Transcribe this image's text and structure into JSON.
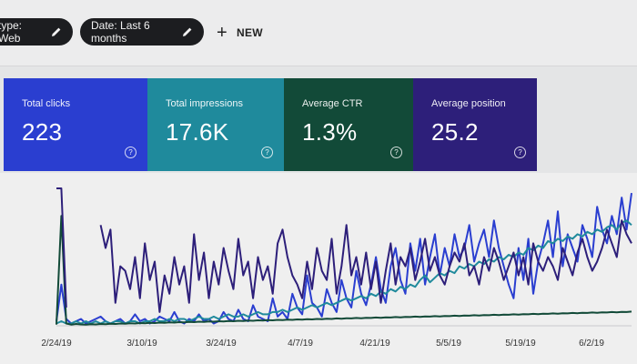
{
  "filters": {
    "type_chip": "type: Web",
    "date_chip": "Date: Last 6 months",
    "new_label": "NEW"
  },
  "metrics": [
    {
      "label": "Total clicks",
      "value": "223",
      "color": "#2a3ed0"
    },
    {
      "label": "Total impressions",
      "value": "17.6K",
      "color": "#1f8a9c"
    },
    {
      "label": "Average CTR",
      "value": "1.3%",
      "color": "#124a38"
    },
    {
      "label": "Average position",
      "value": "25.2",
      "color": "#2d1f7a"
    }
  ],
  "chart_data": {
    "type": "line",
    "x_ticks": [
      "2/24/19",
      "3/10/19",
      "3/24/19",
      "4/7/19",
      "4/21/19",
      "5/5/19",
      "5/19/19",
      "6/2/19"
    ],
    "x_count": 118,
    "series": [
      {
        "color": "#2a3ed0",
        "values": [
          2,
          18,
          3,
          1,
          2,
          3,
          1,
          2,
          3,
          4,
          2,
          1,
          2,
          3,
          1,
          2,
          5,
          2,
          3,
          1,
          2,
          4,
          3,
          2,
          6,
          2,
          1,
          3,
          2,
          5,
          2,
          3,
          1,
          2,
          6,
          3,
          2,
          7,
          3,
          2,
          9,
          4,
          3,
          2,
          12,
          4,
          6,
          3,
          14,
          8,
          5,
          22,
          10,
          8,
          4,
          16,
          10,
          6,
          20,
          12,
          8,
          24,
          14,
          9,
          18,
          30,
          16,
          10,
          26,
          34,
          20,
          14,
          36,
          24,
          38,
          18,
          30,
          40,
          22,
          34,
          26,
          40,
          30,
          34,
          44,
          28,
          36,
          42,
          30,
          46,
          34,
          26,
          18,
          12,
          34,
          20,
          38,
          14,
          28,
          36,
          46,
          30,
          50,
          26,
          40,
          34,
          28,
          44,
          38,
          30,
          52,
          42,
          36,
          48,
          40,
          56,
          42,
          58
        ]
      },
      {
        "color": "#1f8a9c",
        "values": [
          1,
          2,
          1,
          1,
          2,
          1,
          2,
          1,
          2,
          1,
          2,
          1,
          2,
          2,
          1,
          2,
          2,
          1,
          2,
          2,
          3,
          2,
          2,
          3,
          2,
          3,
          3,
          2,
          3,
          4,
          3,
          3,
          4,
          3,
          4,
          5,
          4,
          4,
          5,
          4,
          5,
          6,
          5,
          5,
          6,
          6,
          7,
          6,
          7,
          8,
          7,
          8,
          9,
          8,
          9,
          10,
          9,
          10,
          11,
          12,
          11,
          12,
          13,
          12,
          14,
          13,
          15,
          14,
          16,
          15,
          17,
          16,
          18,
          17,
          20,
          22,
          19,
          21,
          23,
          22,
          24,
          23,
          26,
          25,
          27,
          26,
          28,
          27,
          29,
          28,
          30,
          29,
          31,
          30,
          32,
          31,
          34,
          33,
          35,
          34,
          37,
          36,
          38,
          37,
          39,
          38,
          40,
          39,
          41,
          40,
          42,
          41,
          43,
          44,
          42,
          45,
          46,
          44
        ]
      },
      {
        "color": "#124a38",
        "values": [
          0.5,
          48,
          1,
          0.5,
          0.8,
          0.6,
          0.5,
          0.7,
          0.6,
          0.8,
          0.7,
          0.9,
          0.8,
          1,
          0.9,
          1.1,
          1,
          1.2,
          1.1,
          1.3,
          1.2,
          1.4,
          1.3,
          1.5,
          1.4,
          1.6,
          1.5,
          1.7,
          1.6,
          1.8,
          1.7,
          1.9,
          1.8,
          2,
          1.9,
          2.1,
          2,
          2.2,
          2.1,
          2.3,
          2.2,
          2.4,
          2.3,
          2.5,
          2.4,
          2.6,
          2.5,
          2.7,
          2.6,
          2.8,
          2.7,
          2.9,
          2.8,
          3,
          2.9,
          3.1,
          3,
          3.2,
          3.1,
          3.3,
          3.2,
          3.4,
          3.3,
          3.5,
          3.4,
          3.6,
          3.5,
          3.7,
          3.6,
          3.8,
          3.7,
          3.9,
          3.8,
          4,
          3.9,
          4.1,
          4,
          4.2,
          4.1,
          4.3,
          4.2,
          4.4,
          4.3,
          4.5,
          4.4,
          4.6,
          4.5,
          4.7,
          4.6,
          4.8,
          4.7,
          4.9,
          4.8,
          5,
          4.9,
          5.1,
          5,
          5.2,
          5.1,
          5.3,
          5.2,
          5.4,
          5.3,
          5.5,
          5.4,
          5.6,
          5.5,
          5.7,
          5.6,
          5.8,
          5.7,
          5.9,
          5.8,
          6,
          5.9,
          6.1,
          6,
          6.2
        ]
      },
      {
        "color": "#2d1f7a",
        "values": [
          60,
          60,
          8,
          null,
          null,
          null,
          null,
          null,
          null,
          44,
          34,
          42,
          10,
          26,
          24,
          16,
          30,
          12,
          36,
          20,
          28,
          6,
          22,
          14,
          30,
          18,
          26,
          10,
          40,
          20,
          32,
          12,
          28,
          18,
          34,
          24,
          16,
          38,
          22,
          28,
          12,
          30,
          20,
          26,
          14,
          36,
          42,
          30,
          22,
          18,
          12,
          28,
          16,
          34,
          24,
          20,
          38,
          14,
          26,
          44,
          22,
          30,
          18,
          32,
          16,
          28,
          10,
          24,
          36,
          18,
          30,
          26,
          34,
          20,
          28,
          38,
          24,
          30,
          22,
          18,
          26,
          32,
          28,
          36,
          22,
          26,
          18,
          30,
          24,
          34,
          28,
          20,
          26,
          32,
          22,
          30,
          18,
          36,
          28,
          24,
          30,
          26,
          20,
          34,
          28,
          22,
          32,
          38,
          30,
          24,
          28,
          34,
          42,
          36,
          30,
          46,
          40,
          36
        ]
      }
    ],
    "ylim": [
      0,
      62
    ]
  }
}
